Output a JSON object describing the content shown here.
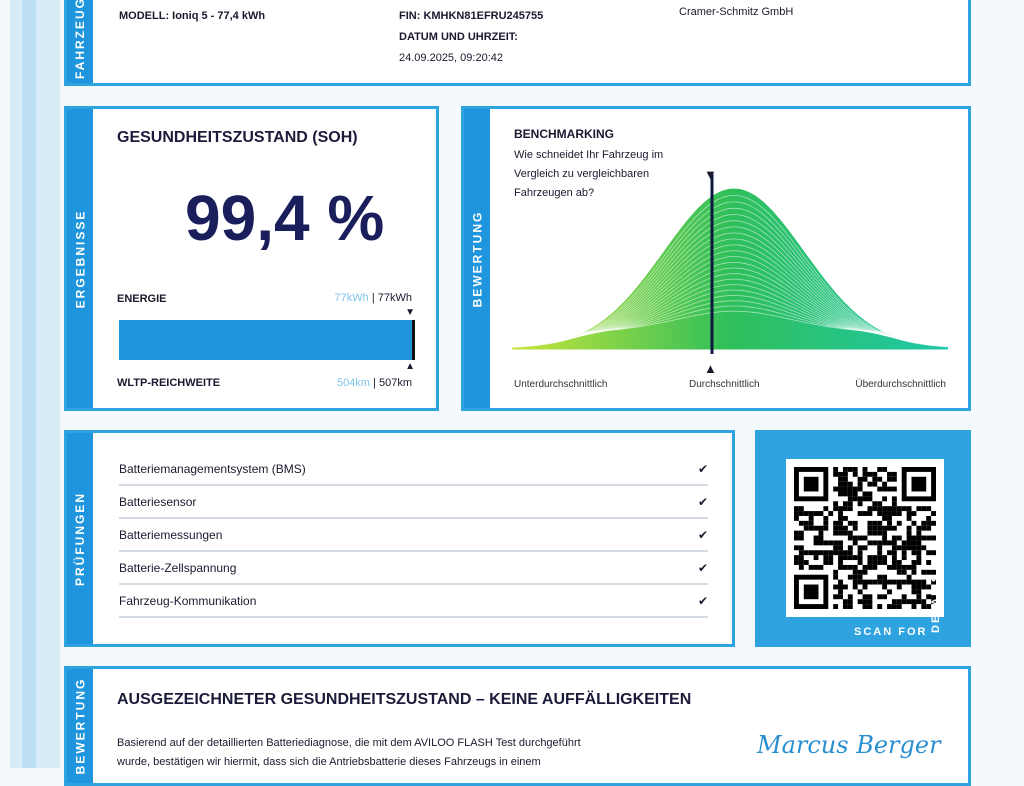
{
  "vehicle": {
    "section": "FAHRZEUG",
    "model": "MODELL: Ioniq 5 - 77,4 kWh",
    "vin": "FIN: KMHKN81EFRU245755",
    "date_label": "DATUM UND UHRZEIT:",
    "date_value": "24.09.2025, 09:20:42",
    "dealer": "Cramer-Schmitz GmbH"
  },
  "results": {
    "section": "ERGEBNISSE",
    "title": "GESUNDHEITSZUSTAND (SOH)",
    "soh": "99,4 %",
    "soh_percent": 99.4,
    "energy_label": "ENERGIE",
    "energy_current": "77kWh",
    "energy_sep": " | ",
    "energy_nominal": "77kWh",
    "range_label": "WLTP-REICHWEITE",
    "range_current": "504km",
    "range_nominal": "507km",
    "accent": "#1e95dc"
  },
  "rating": {
    "section": "BEWERTUNG",
    "title": "BENCHMARKING",
    "question": "Wie schneidet Ihr Fahrzeug im Vergleich zu vergleichbaren Fahrzeugen ab?",
    "labels": [
      "Unterdurchschnittlich",
      "Durchschnittlich",
      "Überdurchschnittlich"
    ]
  },
  "checks": {
    "section": "PRÜFUNGEN",
    "items": [
      {
        "label": "Batteriemanagementsystem (BMS)",
        "status": "✔"
      },
      {
        "label": "Batteriesensor",
        "status": "✔"
      },
      {
        "label": "Batteriemessungen",
        "status": "✔"
      },
      {
        "label": "Batterie-Zellspannung",
        "status": "✔"
      },
      {
        "label": "Fahrzeug-Kommunikation",
        "status": "✔"
      }
    ]
  },
  "qr": {
    "scan_label": "SCAN FOR",
    "details_label": "DETAILS"
  },
  "summary": {
    "section": "BEWERTUNG",
    "title": "AUSGEZEICHNETER GESUNDHEITSZUSTAND – KEINE AUFFÄLLIGKEITEN",
    "line1": "Basierend auf der detaillierten Batteriediagnose, die mit dem AVILOO FLASH Test durchgeführt",
    "line2": "wurde, bestätigen wir hiermit, dass sich die Antriebsbatterie dieses Fahrzeugs in einem",
    "signature": "Marcus Berger"
  }
}
